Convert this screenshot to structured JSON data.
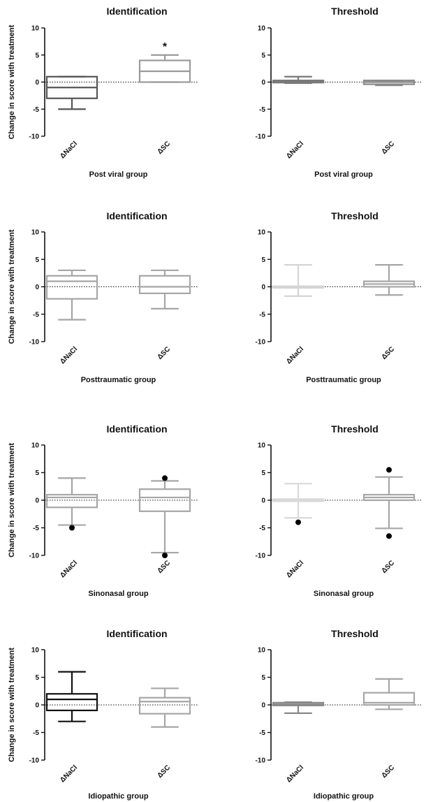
{
  "chart_data": [
    {
      "type": "box",
      "title": "Identification",
      "xlabel": "Post viral group",
      "ylabel": "Change in score with treatment",
      "ylim": [
        -10,
        10
      ],
      "yticks": [
        10,
        5,
        0,
        -5,
        -10
      ],
      "categories": [
        "ΔNaCl",
        "ΔSC"
      ],
      "boxes": [
        {
          "min": -5,
          "q1": -3,
          "median": -1,
          "q3": 1,
          "max": 1,
          "color": "#555555",
          "outliers": []
        },
        {
          "min": 0,
          "q1": 0,
          "median": 2,
          "q3": 4,
          "max": 5,
          "color": "#9a9a9a",
          "outliers": []
        }
      ],
      "annotations": [
        {
          "category_index": 1,
          "text": "*",
          "y": 6.5
        }
      ]
    },
    {
      "type": "box",
      "title": "Threshold",
      "xlabel": "Post viral group",
      "ylabel": "",
      "ylim": [
        -10,
        10
      ],
      "yticks": [
        10,
        5,
        0,
        -5,
        -10
      ],
      "categories": [
        "ΔNaCl",
        "ΔSC"
      ],
      "boxes": [
        {
          "min": -0.2,
          "q1": -0.1,
          "median": 0.2,
          "q3": 0.3,
          "max": 1,
          "color": "#777777",
          "outliers": []
        },
        {
          "min": -0.6,
          "q1": -0.4,
          "median": 0,
          "q3": 0.3,
          "max": 0.3,
          "color": "#888888",
          "outliers": []
        }
      ],
      "annotations": []
    },
    {
      "type": "box",
      "title": "Identification",
      "xlabel": "Posttraumatic group",
      "ylabel": "Change in score with treatment",
      "ylim": [
        -10,
        10
      ],
      "yticks": [
        10,
        5,
        0,
        -5,
        -10
      ],
      "categories": [
        "ΔNaCl",
        "ΔSC"
      ],
      "boxes": [
        {
          "min": -6,
          "q1": -2.2,
          "median": 1,
          "q3": 2,
          "max": 3,
          "color": "#a6a6a6",
          "outliers": []
        },
        {
          "min": -4,
          "q1": -1.2,
          "median": 0,
          "q3": 2,
          "max": 3,
          "color": "#a6a6a6",
          "outliers": []
        }
      ],
      "annotations": []
    },
    {
      "type": "box",
      "title": "Threshold",
      "xlabel": "Posttraumatic group",
      "ylabel": "",
      "ylim": [
        -10,
        10
      ],
      "yticks": [
        10,
        5,
        0,
        -5,
        -10
      ],
      "categories": [
        "ΔNaCl",
        "ΔSC"
      ],
      "boxes": [
        {
          "min": -1.7,
          "q1": -0.2,
          "median": 0,
          "q3": 0.1,
          "max": 4,
          "color": "#d4d4d4",
          "outliers": []
        },
        {
          "min": -1.5,
          "q1": 0,
          "median": 0.5,
          "q3": 1,
          "max": 4,
          "color": "#a6a6a6",
          "outliers": []
        }
      ],
      "annotations": []
    },
    {
      "type": "box",
      "title": "Identification",
      "xlabel": "Sinonasal group",
      "ylabel": "Change in score with treatment",
      "ylim": [
        -10,
        10
      ],
      "yticks": [
        10,
        5,
        0,
        -5,
        -10
      ],
      "categories": [
        "ΔNaCl",
        "ΔSC"
      ],
      "boxes": [
        {
          "min": -4.5,
          "q1": -1.3,
          "median": 0.5,
          "q3": 1,
          "max": 4,
          "color": "#a6a6a6",
          "outliers": [
            -5
          ]
        },
        {
          "min": -9.5,
          "q1": -2,
          "median": 0.5,
          "q3": 2,
          "max": 3.5,
          "color": "#a6a6a6",
          "outliers": [
            4,
            -10
          ]
        }
      ],
      "annotations": []
    },
    {
      "type": "box",
      "title": "Threshold",
      "xlabel": "Sinonasal group",
      "ylabel": "",
      "ylim": [
        -10,
        10
      ],
      "yticks": [
        10,
        5,
        0,
        -5,
        -10
      ],
      "categories": [
        "ΔNaCl",
        "ΔSC"
      ],
      "boxes": [
        {
          "min": -3.2,
          "q1": -0.2,
          "median": 0,
          "q3": 0.2,
          "max": 3,
          "color": "#d9d9d9",
          "outliers": [
            -4
          ]
        },
        {
          "min": -5.1,
          "q1": 0,
          "median": 0.5,
          "q3": 1,
          "max": 4.2,
          "color": "#a6a6a6",
          "outliers": [
            5.5,
            -6.5
          ]
        }
      ],
      "annotations": []
    },
    {
      "type": "box",
      "title": "Identification",
      "xlabel": "Idiopathic group",
      "ylabel": "Change in score with treatment",
      "ylim": [
        -10,
        10
      ],
      "yticks": [
        10,
        5,
        0,
        -5,
        -10
      ],
      "categories": [
        "ΔNaCl",
        "ΔSC"
      ],
      "boxes": [
        {
          "min": -3,
          "q1": -1,
          "median": 1,
          "q3": 2,
          "max": 6,
          "color": "#111111",
          "outliers": []
        },
        {
          "min": -4,
          "q1": -1.6,
          "median": 0.6,
          "q3": 1.3,
          "max": 3,
          "color": "#a6a6a6",
          "outliers": []
        }
      ],
      "annotations": []
    },
    {
      "type": "box",
      "title": "Threshold",
      "xlabel": "Idiopathic group",
      "ylabel": "",
      "ylim": [
        -10,
        10
      ],
      "yticks": [
        10,
        5,
        0,
        -5,
        -10
      ],
      "categories": [
        "ΔNaCl",
        "ΔSC"
      ],
      "boxes": [
        {
          "min": -1.5,
          "q1": -0.1,
          "median": 0.1,
          "q3": 0.4,
          "max": 0.5,
          "color": "#888888",
          "outliers": []
        },
        {
          "min": -0.8,
          "q1": 0,
          "median": 0.4,
          "q3": 2.2,
          "max": 4.7,
          "color": "#a6a6a6",
          "outliers": []
        }
      ],
      "annotations": []
    }
  ]
}
